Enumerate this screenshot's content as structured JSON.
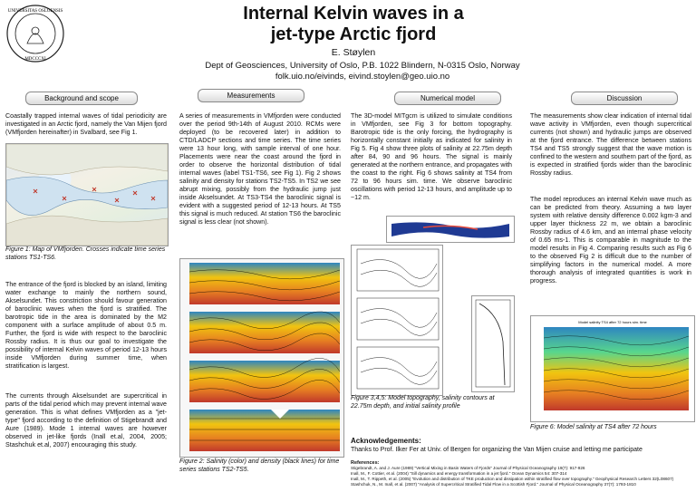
{
  "header": {
    "title_line1": "Internal Kelvin waves in a",
    "title_line2": "jet-type Arctic fjord",
    "author": "E. Støylen",
    "affiliation": "Dept of Geosciences, University of Oslo, P.B. 1022 Blindern, N-0315 Oslo, Norway",
    "contact": "folk.uio.no/eivinds, eivind.stoylen@geo.uio.no",
    "seal_text": "UNIVERSITAS OSLOENSIS MDCCCXI"
  },
  "sections": {
    "background": "Background and scope",
    "measurements": "Measurements",
    "numerical": "Numerical model",
    "discussion": "Discussion"
  },
  "col1": {
    "p1": "Coastally trapped internal waves of tidal periodicity are investigated in an Arctic fjord, namely the Van Mijen fjord (VMfjorden hereinafter) in Svalbard, see Fig 1.",
    "fig1_caption": "Figure 1: Map of VMfjorden. Crosses indicate time series stations TS1-TS6.",
    "p2": "The entrance of the fjord is blocked by an island, limiting water exchange to mainly the northern sound, Akselsundet. This constriction should favour generation of baroclinic waves when the fjord is stratified. The barotropic tide in the area is dominated by the M2 component with a surface amplitude of about 0.5 m. Further, the fjord is wide with respect to the baroclinic Rossby radius. It is thus our goal to investigate the possibility of internal Kelvin waves of period 12-13 hours inside VMfjorden during summer time, when stratification is largest.",
    "p3": "The currents through Akselsundet are supercritical in parts of the tidal period which may prevent internal wave generation. This is what defines VMfjorden as a \"jet-type\" fjord according to the definition of Stigebrandt and Aure (1989). Mode 1 internal waves are however observed in jet-like fjords (Inall et.al, 2004, 2005; Stashchuk et.al, 2007) encouraging this study."
  },
  "col2": {
    "p1": "A series of measurements in VMfjorden were conducted over the period 9th-14th of August 2010. RCMs were deployed (to be recovered later) in addition to CTD/LADCP sections and time series. The time series were 13 hour long, with sample interval of one hour. Placements were near the coast around the fjord in order to observe the horizontal distribution of tidal internal waves (label TS1-TS6, see Fig 1). Fig 2 shows salinity and density for stations TS2-TS5. In TS2 we see abrupt mixing, possibly from the hydraulic jump just inside Akselsundet. At TS3-TS4 the baroclinic signal is evident with a suggested period of 12-13 hours. At TS5 this signal is much reduced. At station TS6 the baroclinic signal is less clear (not shown).",
    "fig2_caption": "Figure 2: Salinity (color) and density (black lines) for time series stations TS2-TS5."
  },
  "col3": {
    "p1": "The 3D-model MITgcm is utilized to simulate conditions in VMfjorden, see Fig 3 for bottom topography. Barotropic tide is the only forcing, the hydrography is horizontally constant initially as indicated for salinity in Fig 5. Fig 4 show three plots of salinity at 22.75m depth after 84, 90 and 96 hours. The signal is mainly generated at the northern entrance, and propagates with the coast to the right. Fig 6 shows salinity at TS4 from 72 to 96 hours sim. time. We observe baroclinic oscillations with period 12-13 hours, and amplitude up to ~12 m.",
    "fig345_caption": "Figure 3,4,5: Model topography, salinity contours at 22.75m depth, and initial salinity profile"
  },
  "col4": {
    "p1": "The measurements show clear indication of internal tidal wave activity in VMfjorden, even though supercritical currents (not shown) and hydraulic jumps are observed at the fjord entrance. The difference between stations TS4 and TS5 strongly suggest that the wave motion is confined to the western and southern part of the fjord, as is expected in stratified fjords wider than the baroclinic Rossby radius.",
    "p2": "The model reproduces an internal Kelvin wave much as can be predicted from theory. Assuming a two layer system with relative density difference 0.002 kgm-3 and upper layer thickness 22 m, we obtain a baroclinic Rossby radius of 4.6 km, and an internal phase velocity of 0.65 ms-1. This is comparable in magnitude to the model results in Fig 4. Comparing results such as Fig 6 to the observed Fig 2 is difficult due to the number of simplifying factors in the numerical model. A more thorough analysis of integrated quantities is work in progress.",
    "fig6_caption": "Figure 6: Model salinity at TS4 after 72 hours",
    "fig6_title": "Model salinity TS4 after 72 hours sim. time"
  },
  "ack": {
    "heading": "Acknowledgements:",
    "text": "Thanks to Prof. Ilker Fer at Univ. of Bergen for organizing the Van Mijen cruise and letting me participate"
  },
  "references": {
    "heading": "References:",
    "items": [
      "Stigebrandt, A. and J. Aure (1989) \"Vertical Mixing in Basin Waters of Fjords\" Journal of Physical Oceanography 19(7): 917-926",
      "Inall, M., F. Cottier, et al. (2004) \"Sill dynamics and energy transformation in a jet fjord.\" Ocean Dynamics 54: 307-314",
      "Inall, M., T. Rippeth, et al. (2005) \"Evolution and distribution of TKE production and dissipation within stratified flow over topography.\" Geophysical Research Letters 32(L08607)",
      "Stashchuk, N., M. Inall, et al. (2007) \"Analysis of Supercritical Stratified Tidal Flow in a Scottish Fjord.\" Journal of Physical Oceanography 37(7): 1793-1810"
    ]
  },
  "colors": {
    "salinity_high": "#c0392b",
    "salinity_mid": "#f1c40f",
    "salinity_low": "#2e86c1",
    "topo_deep": "#1f3a93",
    "pill_border": "#888888"
  }
}
